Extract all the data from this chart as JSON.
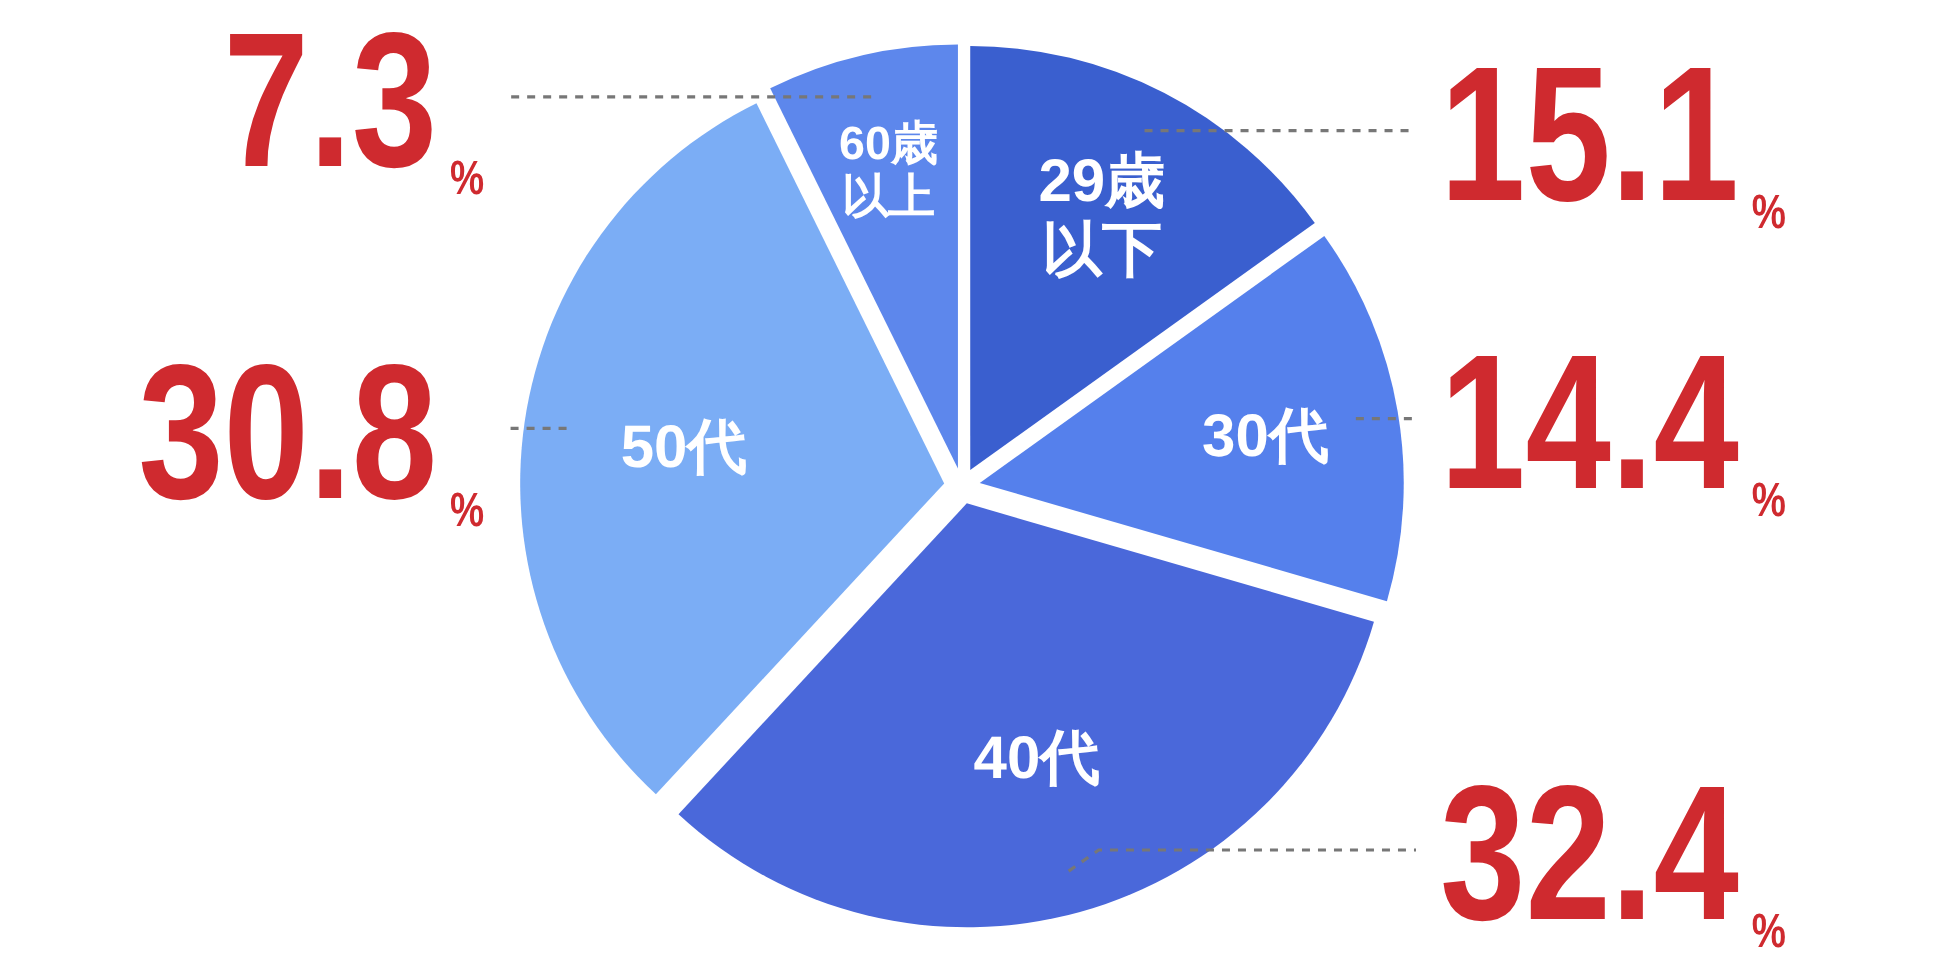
{
  "chart_data": {
    "type": "pie",
    "categories": [
      "29歳以下",
      "30代",
      "40代",
      "50代",
      "60歳以上"
    ],
    "values": [
      15.1,
      14.4,
      32.4,
      30.8,
      7.3
    ],
    "colors": [
      "#3a5fcf",
      "#5580ec",
      "#4a68da",
      "#7badf5",
      "#5d87ec"
    ],
    "value_labels": [
      "15.1$_{%}$",
      "14.4$_{%}$",
      "32.4$_{%}$",
      "30.8$_{%}$",
      "7.3$_{%}$"
    ]
  }
}
